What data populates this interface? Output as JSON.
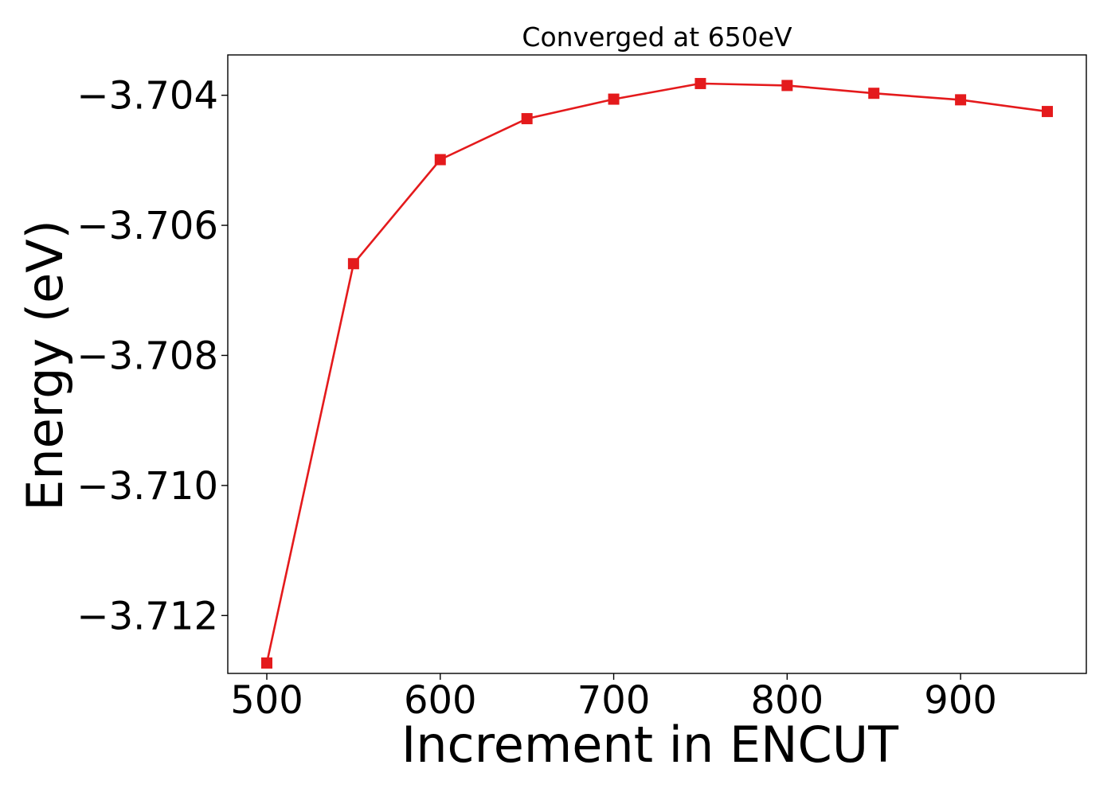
{
  "chart_data": {
    "type": "line",
    "title": "Converged at 650eV",
    "xlabel": "Increment in ENCUT",
    "ylabel": "Energy (eV)",
    "x": [
      500,
      550,
      600,
      650,
      700,
      750,
      800,
      850,
      900,
      950
    ],
    "series": [
      {
        "values": [
          -3.71273,
          -3.70659,
          -3.70499,
          -3.70436,
          -3.70406,
          -3.70382,
          -3.70385,
          -3.70397,
          -3.70407,
          -3.70425
        ],
        "color": "#e41a1c",
        "marker": "square"
      }
    ],
    "xlim": [
      477.5,
      972.5
    ],
    "ylim": [
      -3.71289,
      -3.70338
    ],
    "xticks": [
      500,
      600,
      700,
      800,
      900
    ],
    "xtick_labels": [
      "500",
      "600",
      "700",
      "800",
      "900"
    ],
    "yticks": [
      -3.704,
      -3.706,
      -3.708,
      -3.71,
      -3.712
    ],
    "ytick_labels": [
      "−3.704",
      "−3.706",
      "−3.708",
      "−3.710",
      "−3.712"
    ],
    "grid": false,
    "legend": "none"
  }
}
